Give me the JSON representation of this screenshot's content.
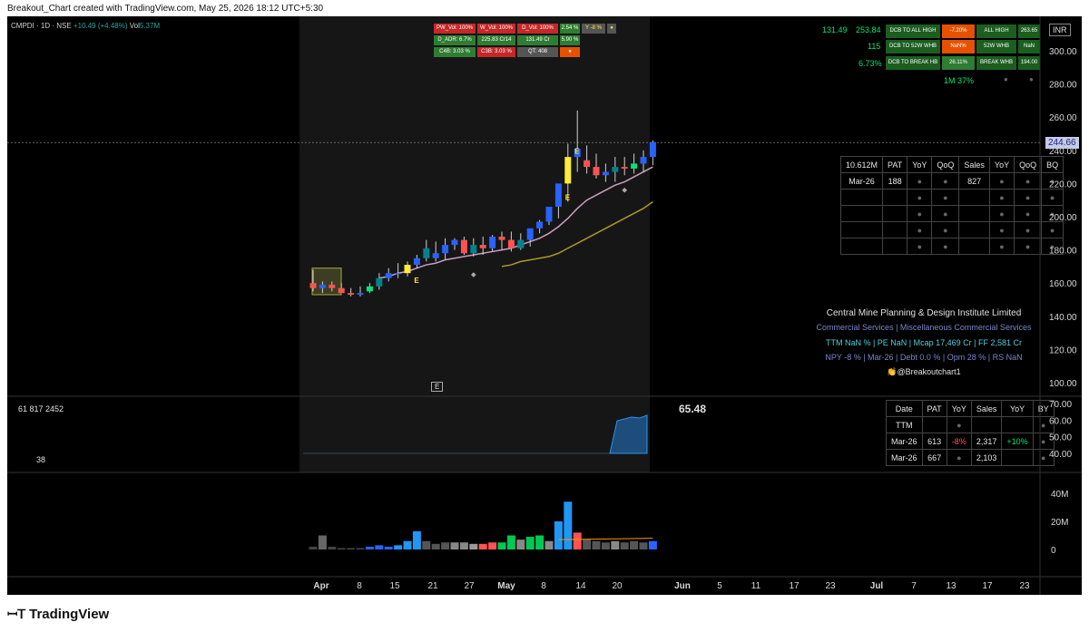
{
  "header": {
    "caption": "Breakout_Chart created with TradingView.com, May 25, 2026 18:12 UTC+5:30"
  },
  "symbol": {
    "name": "CMPDI · 1D · NSE",
    "change": "+10.49 (+4.48%)",
    "vol_label": "Vol",
    "vol_value": "5.37M"
  },
  "currency": "INR",
  "last_price": "244.66",
  "price_axis": [
    "300.00",
    "280.00",
    "260.00",
    "240.00",
    "220.00",
    "200.00",
    "180.00",
    "160.00",
    "140.00",
    "120.00",
    "100.00"
  ],
  "osc_axis": [
    "70.00",
    "60.00",
    "50.00",
    "40.00"
  ],
  "vol_axis": [
    "40M",
    "20M",
    "0"
  ],
  "time_axis": [
    "Apr",
    "8",
    "15",
    "21",
    "27",
    "May",
    "8",
    "14",
    "20",
    "Jun",
    "5",
    "11",
    "17",
    "23",
    "Jul",
    "7",
    "13",
    "17",
    "23"
  ],
  "top_tags": {
    "row1": [
      "PW_Vol: 100%",
      "W_Vol: 100%",
      "D_Vol: 100%",
      "2.54 %",
      "Y -8 %",
      "●"
    ],
    "row2": [
      "D_ADR: 6.7%",
      "225.83 Cr14",
      "131.49 Cr",
      "5.90 %"
    ],
    "row3": [
      "C4B: 3.03 %",
      "C3B: 3.03 %",
      "QT: 408",
      "●"
    ]
  },
  "dcb": {
    "left_values": [
      [
        "131.49",
        "253.84"
      ],
      [
        "115",
        ""
      ],
      [
        "6.73%",
        ""
      ]
    ],
    "rows": [
      {
        "label": "DCB TO ALL HIGH",
        "pct": "-7.20%",
        "k": "ALL HIGH",
        "v": "263.65"
      },
      {
        "label": "DCB TO 52W WHB",
        "pct": "NaN%",
        "k": "52W WHB",
        "v": "NaN"
      },
      {
        "label": "DCB TO BREAK HB",
        "pct": "26.11%",
        "k": "BREAK WHB",
        "v": "194.00"
      }
    ],
    "onem": "1M 37%"
  },
  "mid_table": {
    "header": [
      "10.612M",
      "PAT",
      "YoY",
      "QoQ",
      "Sales",
      "YoY",
      "QoQ",
      "BQ"
    ],
    "rows": [
      [
        "Mar-26",
        "188",
        "●",
        "●",
        "827",
        "●",
        "●",
        "●"
      ],
      [
        "",
        "",
        "●",
        "●",
        "",
        "●",
        "●",
        "●"
      ],
      [
        "",
        "",
        "●",
        "●",
        "",
        "●",
        "●",
        "●"
      ],
      [
        "",
        "",
        "●",
        "●",
        "",
        "●",
        "●",
        "●"
      ],
      [
        "",
        "",
        "●",
        "●",
        "",
        "●",
        "●",
        "●"
      ]
    ]
  },
  "company": {
    "name": "Central Mine Planning & Design Institute Limited",
    "sector": "Commercial Services | Miscellaneous Commercial Services",
    "line1": "TTM NaN % | PE  NaN | Mcap 17,469 Cr | FF 2,581 Cr",
    "line2": "NPY -8 % | Mar-26 | Debt 0.0 % | Opm 28 % | RS NaN",
    "handle": "👏@Breakoutchart1"
  },
  "osc": {
    "left": "61   817   2452",
    "left2": "38",
    "value": "65.48"
  },
  "bottom_table": {
    "header": [
      "Date",
      "PAT",
      "YoY",
      "Sales",
      "YoY",
      "BY"
    ],
    "rows": [
      [
        "TTM",
        "",
        "●",
        "",
        "",
        "●"
      ],
      [
        "Mar-26",
        "613",
        "-8%",
        "2,317",
        "+10%",
        "●"
      ],
      [
        "Mar-26",
        "667",
        "●",
        "2,103",
        "",
        "●"
      ]
    ]
  },
  "earnings_marker": "E",
  "colors": {
    "up": "#2962ff",
    "down": "#ff5252",
    "teal": "#00838f",
    "yellow": "#ffeb3b",
    "green": "#4caf50",
    "ma1": "#c9a0c0",
    "ma2": "#a89a2a"
  },
  "chart_data": {
    "type": "candlestick",
    "x": [
      "Mar 30",
      "Mar 31",
      "Apr 1",
      "Apr 2",
      "Apr 6",
      "Apr 7",
      "Apr 8",
      "Apr 9",
      "Apr 13",
      "Apr 15",
      "Apr 16",
      "Apr 17",
      "Apr 20",
      "Apr 21",
      "Apr 22",
      "Apr 23",
      "Apr 24",
      "Apr 27",
      "Apr 28",
      "Apr 29",
      "Apr 30",
      "May 4",
      "May 5",
      "May 6",
      "May 7",
      "May 8",
      "May 11",
      "May 12",
      "May 13",
      "May 14",
      "May 15",
      "May 18",
      "May 19",
      "May 20",
      "May 21",
      "May 22",
      "May 25"
    ],
    "open": [
      160,
      157,
      159,
      157,
      154,
      153,
      155,
      158,
      163,
      166,
      166,
      171,
      175,
      175,
      178,
      183,
      186,
      178,
      183,
      181,
      188,
      186,
      181,
      186,
      193,
      197,
      206,
      220,
      236,
      234,
      230,
      225,
      227,
      230,
      229,
      232,
      236
    ],
    "high": [
      168,
      161,
      161,
      160,
      157,
      158,
      160,
      166,
      169,
      172,
      173,
      177,
      186,
      185,
      187,
      187,
      188,
      187,
      188,
      189,
      191,
      191,
      190,
      192,
      198,
      205,
      218,
      244,
      264,
      243,
      238,
      232,
      236,
      236,
      238,
      240,
      246
    ],
    "low": [
      155,
      154,
      155,
      154,
      152,
      152,
      154,
      156,
      161,
      163,
      164,
      169,
      173,
      173,
      174,
      180,
      177,
      176,
      177,
      179,
      180,
      179,
      180,
      182,
      190,
      195,
      199,
      209,
      227,
      226,
      223,
      221,
      221,
      225,
      226,
      227,
      231
    ],
    "close": [
      157,
      159,
      157,
      154,
      153,
      154,
      158,
      163,
      166,
      166,
      171,
      175,
      181,
      178,
      183,
      186,
      178,
      183,
      181,
      188,
      186,
      181,
      186,
      193,
      197,
      206,
      220,
      236,
      241,
      230,
      225,
      227,
      230,
      229,
      232,
      236,
      245
    ],
    "volume": [
      2,
      10,
      2,
      1,
      1,
      1,
      2,
      3,
      2,
      3,
      6,
      13,
      6,
      4,
      5,
      5,
      5,
      4,
      4,
      5,
      5,
      10,
      7,
      9,
      10,
      6,
      20,
      34,
      12,
      7,
      6,
      5,
      6,
      5,
      6,
      5,
      6
    ],
    "ma_fast": [
      null,
      null,
      null,
      null,
      null,
      null,
      null,
      163,
      164,
      166,
      167,
      169,
      171,
      172,
      174,
      175,
      176,
      177,
      178,
      179,
      180,
      181,
      183,
      185,
      187,
      190,
      194,
      199,
      205,
      210,
      213,
      216,
      219,
      221,
      224,
      227,
      230
    ],
    "ma_slow": [
      null,
      null,
      null,
      null,
      null,
      null,
      null,
      null,
      null,
      null,
      null,
      null,
      null,
      null,
      null,
      null,
      null,
      null,
      null,
      null,
      170,
      171,
      173,
      174,
      175,
      176,
      178,
      181,
      184,
      187,
      190,
      193,
      196,
      199,
      202,
      205,
      209
    ],
    "ylim": [
      100,
      300
    ]
  }
}
